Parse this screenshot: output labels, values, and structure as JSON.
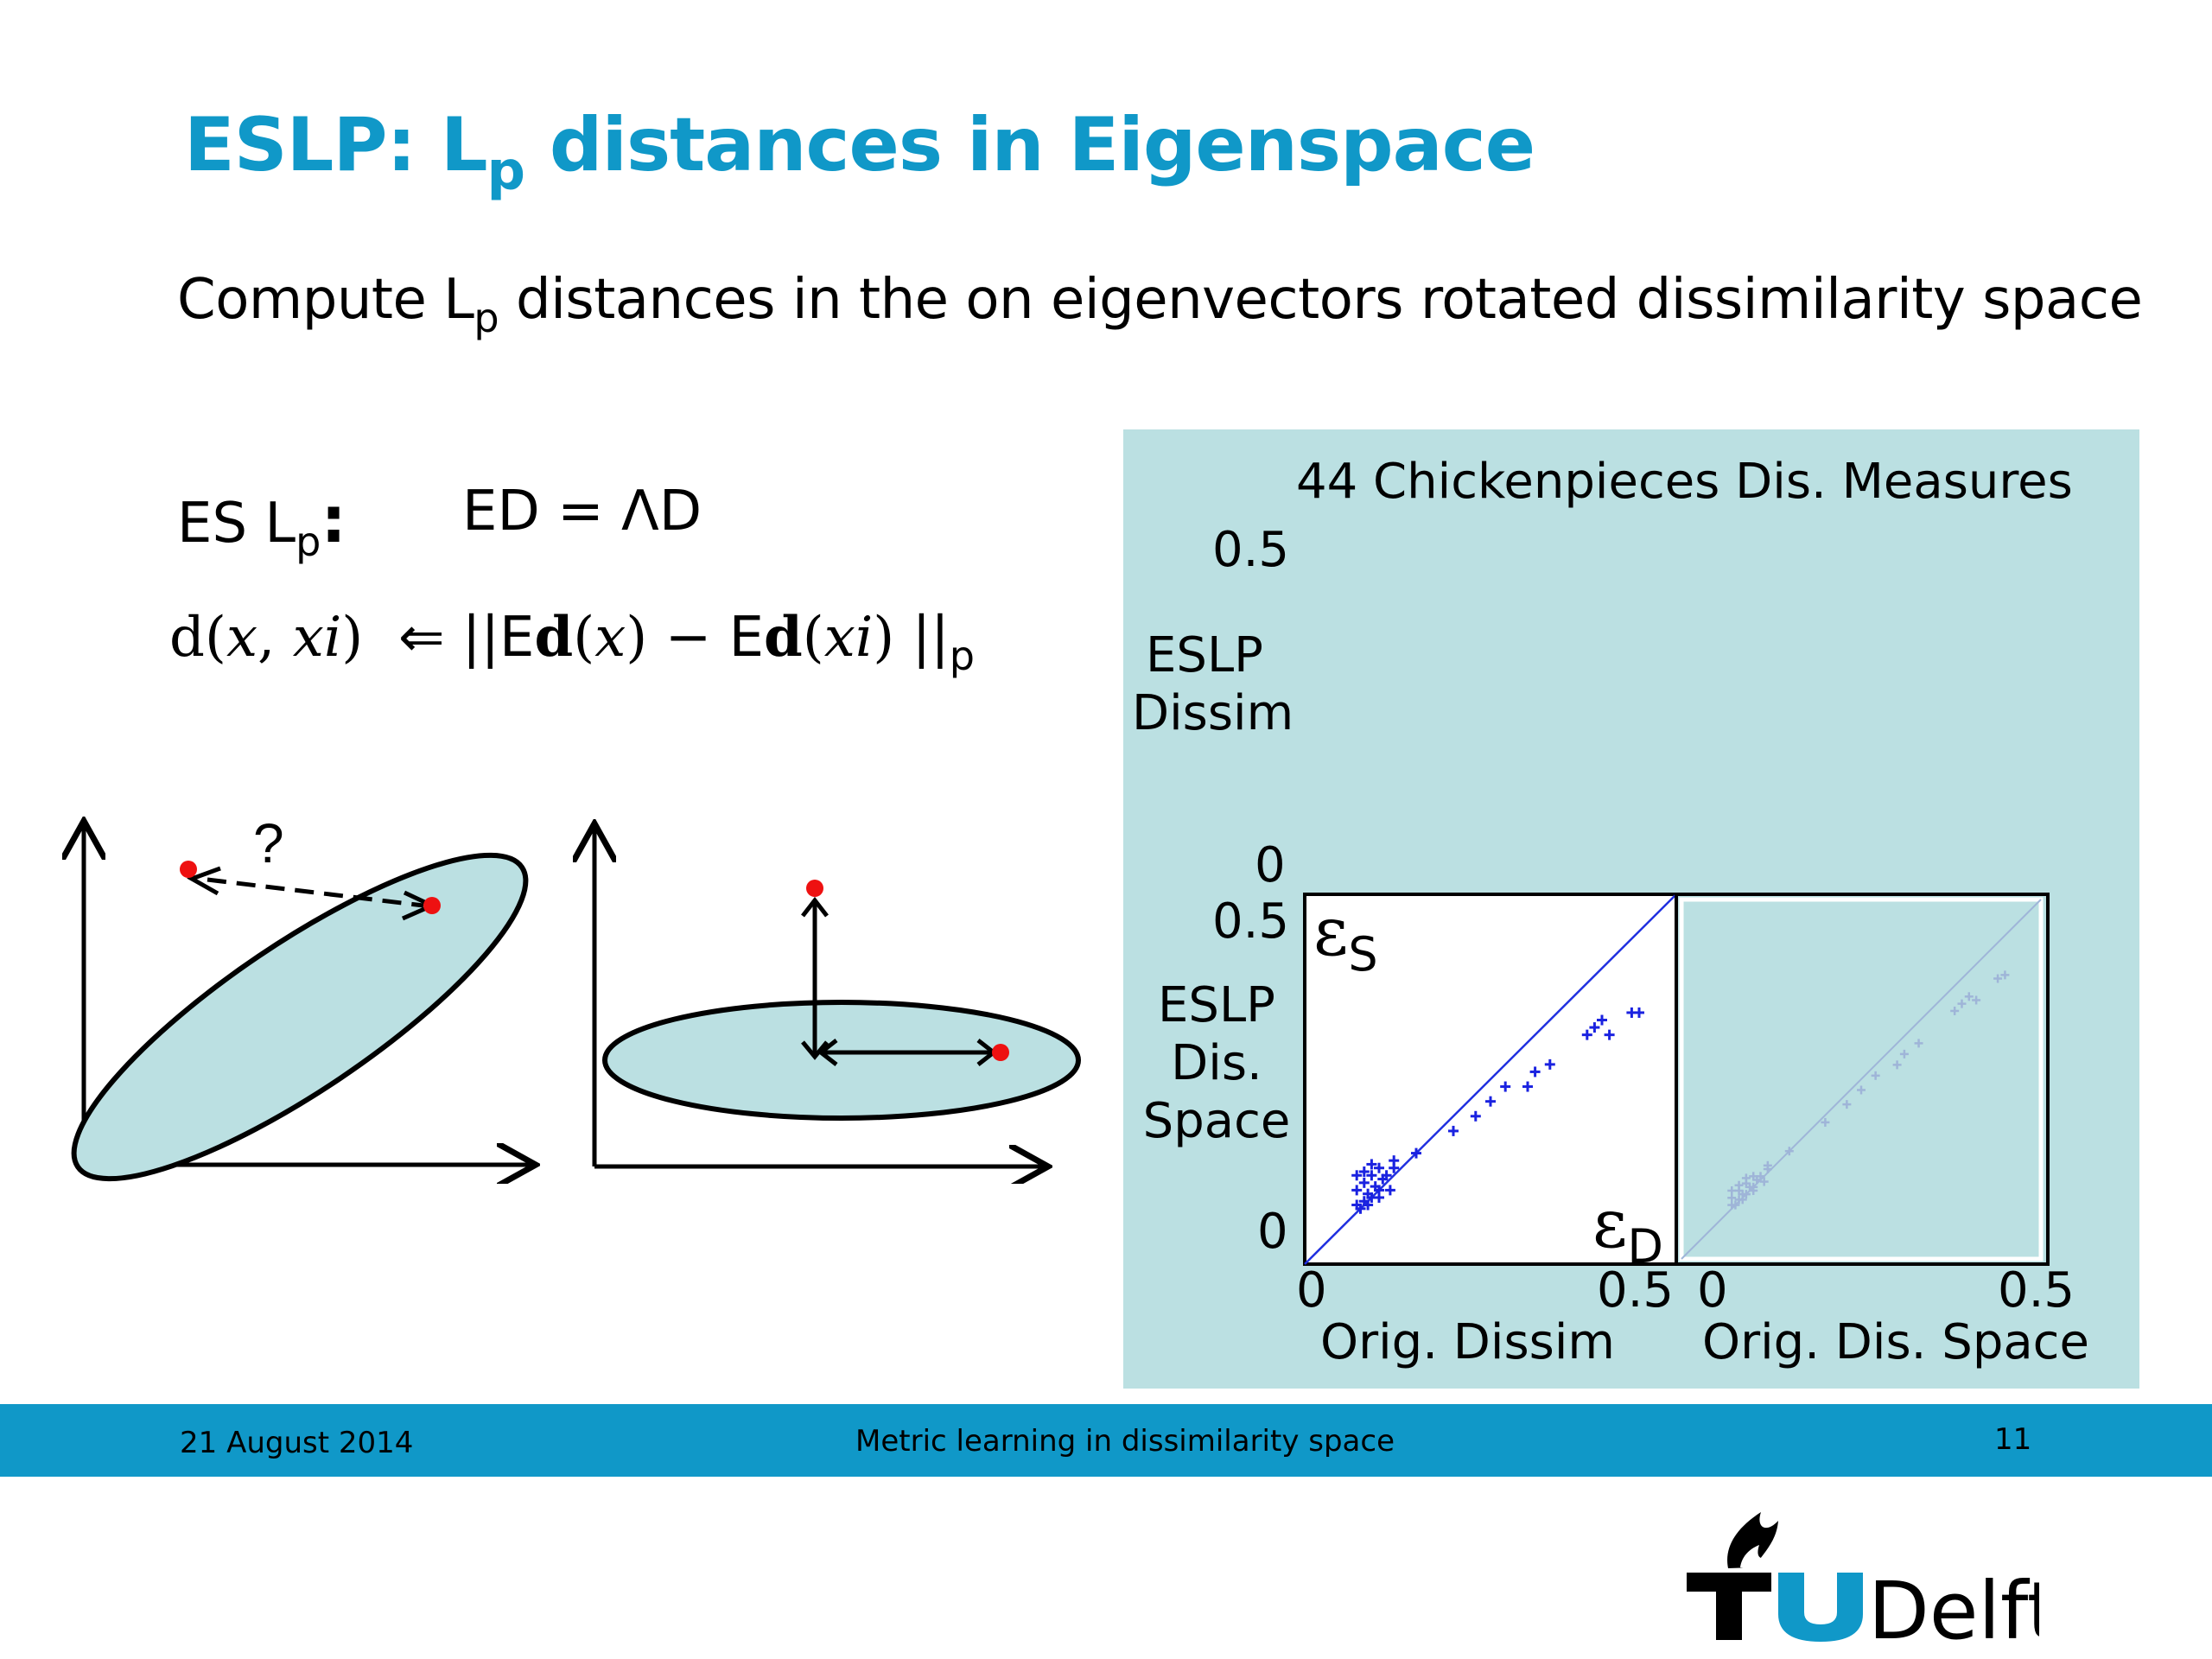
{
  "title": {
    "prefix": "ESLP: L",
    "sub": "p",
    "suffix": " distances in Eigenspace"
  },
  "subtitle": {
    "prefix": "Compute L",
    "sub": "p",
    "suffix": " distances in the on eigenvectors rotated dissimilarity space"
  },
  "es_label": {
    "prefix": "ES L",
    "sub": "p",
    "colon": ":"
  },
  "ed_equation": "ED = ΛD",
  "formula": {
    "lhs": "d(",
    "x1": "x",
    "comma": ", ",
    "xi1": "xi",
    "close1": ")",
    "arrow": "⇐",
    "bars_open": "||E",
    "d_bold1": "d",
    "paren1": "(",
    "x2": "x",
    "paren1c": ")",
    "minus": " − E",
    "d_bold2": "d",
    "paren2": "(",
    "xi2": "xi",
    "paren2c": ")",
    "bars_close": " ||",
    "sub": "p"
  },
  "diagram": {
    "question_mark": "?"
  },
  "plot": {
    "title": "44 Chickenpieces Dis. Measures",
    "top_y_max": "0.5",
    "top_ylabel_line1": "ESLP",
    "top_ylabel_line2": "Dissim",
    "top_y_min": "0",
    "bottom_y_max": "0.5",
    "bottom_ylabel_line1": "ESLP",
    "bottom_ylabel_line2": "Dis.",
    "bottom_ylabel_line3": "Space",
    "bottom_y_min": "0",
    "left_x_min": "0",
    "left_x_max": "0.5",
    "left_xlabel": "Orig. Dissim",
    "right_x_min": "0",
    "right_x_max": "0.5",
    "right_xlabel": "Orig. Dis. Space",
    "left_annotation_base": "ε",
    "left_annotation_sub": "S",
    "right_annotation_base": "ε",
    "right_annotation_sub": "D",
    "colors": {
      "points": "#1a22e0",
      "diagonal": "#2030e0",
      "faded": "#9fb5d8"
    }
  },
  "chart_data": {
    "type": "scatter",
    "title": "44 Chickenpieces Dis. Measures",
    "xlabel": "Orig. Dissim",
    "ylabel": "ESLP Dis. Space",
    "xlim": [
      0,
      0.5
    ],
    "ylim": [
      0,
      0.5
    ],
    "reference_line": "y = x",
    "series": [
      {
        "name": "",
        "marker": "+",
        "x": [
          0.07,
          0.08,
          0.09,
          0.1,
          0.07,
          0.08,
          0.09,
          0.1,
          0.11,
          0.12,
          0.075,
          0.085,
          0.095,
          0.105,
          0.115,
          0.08,
          0.09,
          0.1,
          0.07,
          0.085,
          0.12,
          0.15,
          0.2,
          0.23,
          0.25,
          0.27,
          0.3,
          0.31,
          0.33,
          0.38,
          0.39,
          0.4,
          0.41,
          0.44,
          0.45
        ],
        "y": [
          0.08,
          0.085,
          0.09,
          0.1,
          0.1,
          0.11,
          0.12,
          0.13,
          0.12,
          0.13,
          0.075,
          0.095,
          0.105,
          0.115,
          0.1,
          0.125,
          0.135,
          0.09,
          0.12,
          0.08,
          0.14,
          0.15,
          0.18,
          0.2,
          0.22,
          0.24,
          0.24,
          0.26,
          0.27,
          0.31,
          0.32,
          0.33,
          0.31,
          0.34,
          0.34
        ]
      }
    ]
  }
}
